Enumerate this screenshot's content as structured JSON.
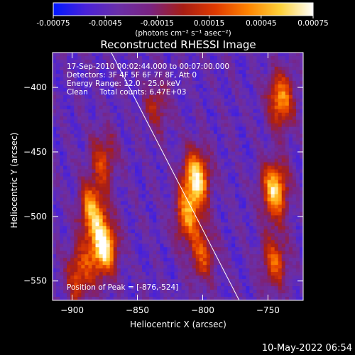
{
  "colorbar": {
    "ticks": [
      "-0.00075",
      "-0.00045",
      "-0.00015",
      "0.00015",
      "0.00045",
      "0.00075"
    ],
    "tick_values": [
      -0.00075,
      -0.00045,
      -0.00015,
      0.00015,
      0.00045,
      0.00075
    ],
    "range": [
      -0.00075,
      0.00075
    ],
    "units_label": "(photons cm⁻² s⁻¹ asec⁻²)",
    "stops": [
      "#0018ff",
      "#4a22d8",
      "#6a2fa8",
      "#7a2380",
      "#a81e14",
      "#e03a00",
      "#ff8400",
      "#ffd23a",
      "#ffffff"
    ]
  },
  "chart_data": {
    "type": "heatmap",
    "title": "Reconstructed RHESSI Image",
    "xlabel": "Heliocentric X (arcsec)",
    "ylabel": "Heliocentric Y (arcsec)",
    "xlim": [
      -915,
      -723
    ],
    "ylim": [
      -565,
      -373
    ],
    "xticks": [
      -900,
      -850,
      -800,
      -750
    ],
    "yticks": [
      -400,
      -450,
      -500,
      -550
    ],
    "xtick_labels": [
      "−900",
      "−850",
      "−800",
      "−750"
    ],
    "ytick_labels": [
      "−400",
      "−450",
      "−500",
      "−550"
    ],
    "info_lines": [
      "17-Sep-2010 00:02:44.000 to 00:07:00.000",
      "Detectors: 3F 4F 5F 6F 7F 8F, Att 0",
      "Energy Range: 12.0 - 25.0 keV",
      "Clean     Total counts: 6.47E+03"
    ],
    "peak_label": "Position of Peak = [-876,-524]",
    "peak": [
      -876,
      -524
    ],
    "limb_line": [
      [
        -870,
        -373
      ],
      [
        -772,
        -565
      ]
    ],
    "sources": [
      {
        "x": -876,
        "y": -524,
        "intensity": 1.0
      },
      {
        "x": -885,
        "y": -495,
        "intensity": 0.7
      },
      {
        "x": -895,
        "y": -545,
        "intensity": 0.55
      },
      {
        "x": -876,
        "y": -455,
        "intensity": 0.45
      },
      {
        "x": -805,
        "y": -470,
        "intensity": 0.9
      },
      {
        "x": -812,
        "y": -500,
        "intensity": 0.6
      },
      {
        "x": -800,
        "y": -530,
        "intensity": 0.5
      },
      {
        "x": -745,
        "y": -480,
        "intensity": 0.85
      },
      {
        "x": -740,
        "y": -410,
        "intensity": 0.7
      },
      {
        "x": -745,
        "y": -535,
        "intensity": 0.55
      },
      {
        "x": -835,
        "y": -415,
        "intensity": 0.35
      }
    ]
  },
  "footer": {
    "timestamp": "10-May-2022 06:54"
  }
}
